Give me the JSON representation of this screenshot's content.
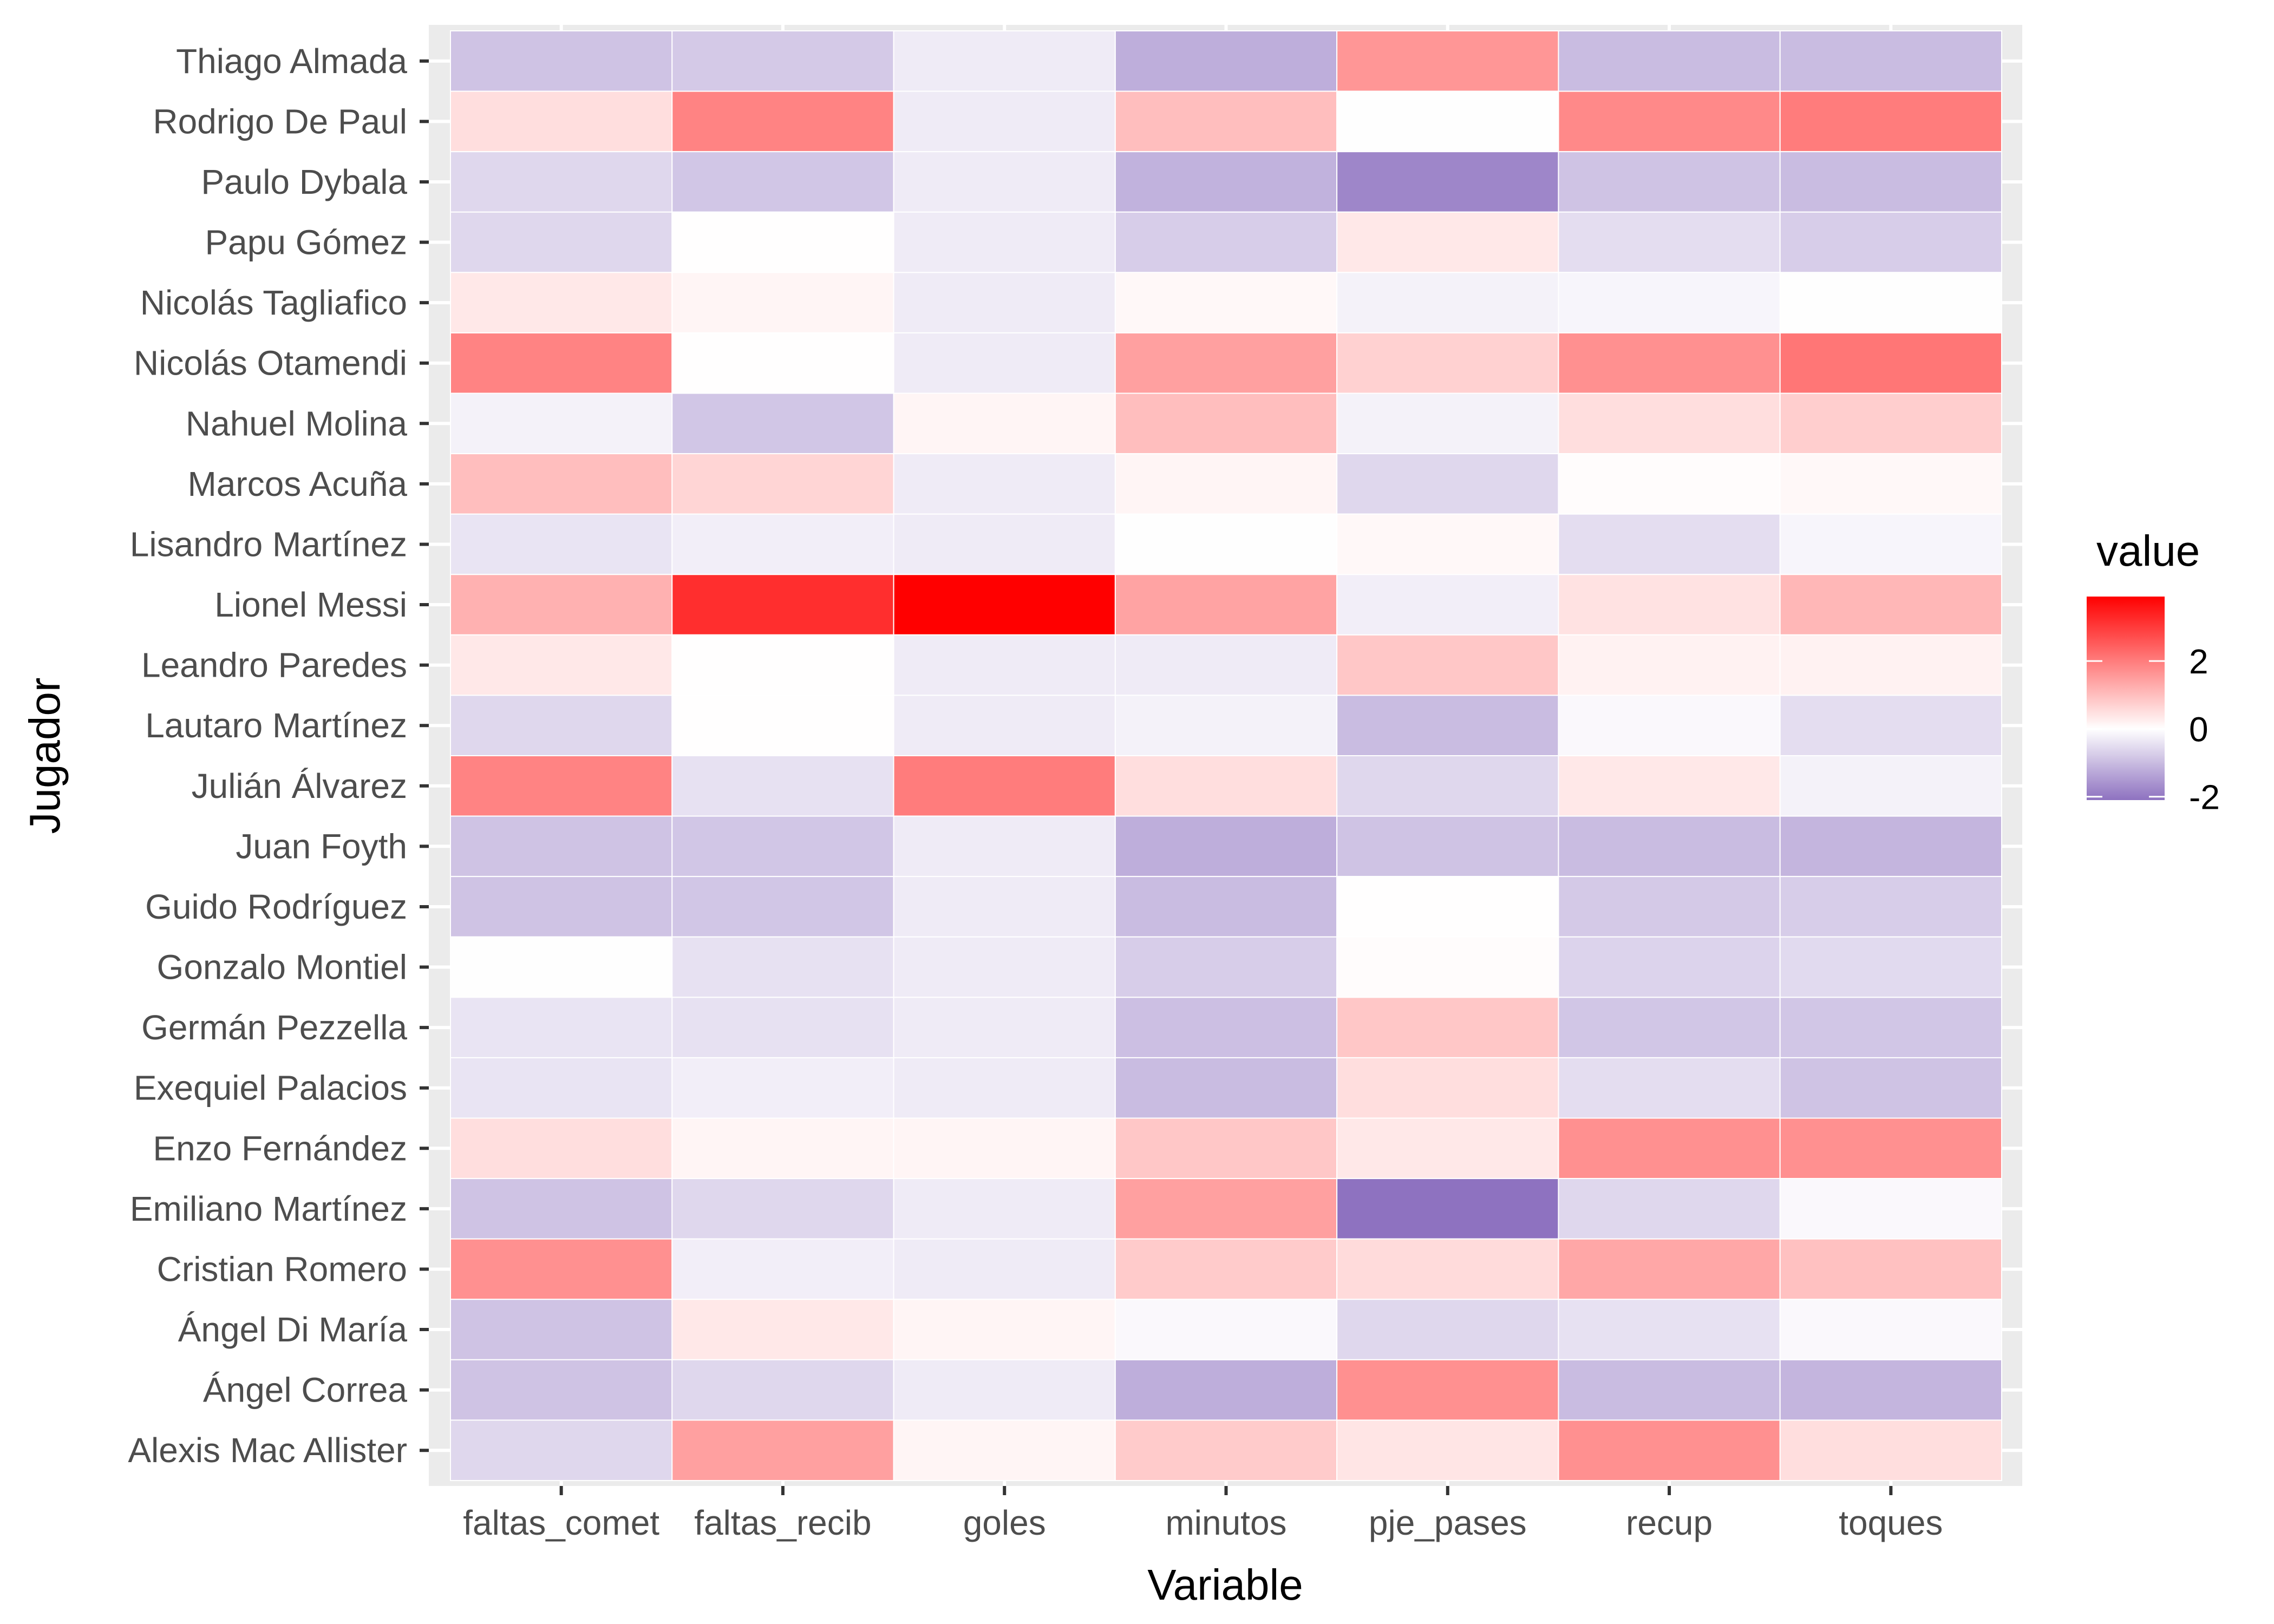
{
  "chart_data": {
    "type": "heatmap",
    "title": "",
    "xlabel": "Variable",
    "ylabel": "Jugador",
    "x_categories": [
      "faltas_comet",
      "faltas_recib",
      "goles",
      "minutos",
      "pje_pases",
      "recup",
      "toques"
    ],
    "y_categories_top_to_bottom": [
      "Thiago Almada",
      "Rodrigo De Paul",
      "Paulo Dybala",
      "Papu Gómez",
      "Nicolás Tagliafico",
      "Nicolás Otamendi",
      "Nahuel Molina",
      "Marcos Acuña",
      "Lisandro Martínez",
      "Lionel Messi",
      "Leandro Paredes",
      "Lautaro Martínez",
      "Julián Álvarez",
      "Juan Foyth",
      "Guido Rodríguez",
      "Gonzalo Montiel",
      "Germán Pezzella",
      "Exequiel Palacios",
      "Enzo Fernández",
      "Emiliano Martínez",
      "Cristian Romero",
      "Ángel Di María",
      "Ángel Correa",
      "Alexis Mac Allister"
    ],
    "values": [
      [
        -0.9,
        -0.8,
        -0.3,
        -1.2,
        1.6,
        -1.0,
        -1.0
      ],
      [
        0.5,
        1.9,
        -0.3,
        1.0,
        -0.02,
        1.8,
        2.0
      ],
      [
        -0.6,
        -0.85,
        -0.3,
        -1.15,
        -1.8,
        -0.9,
        -1.0
      ],
      [
        -0.6,
        0.02,
        -0.3,
        -0.75,
        0.35,
        -0.5,
        -0.75
      ],
      [
        0.35,
        0.15,
        -0.3,
        0.1,
        -0.2,
        -0.15,
        -0.02
      ],
      [
        1.9,
        0.02,
        -0.3,
        1.45,
        0.7,
        1.7,
        2.1
      ],
      [
        -0.2,
        -0.85,
        0.15,
        1.0,
        -0.2,
        0.5,
        0.75
      ],
      [
        1.0,
        0.65,
        -0.3,
        0.15,
        -0.6,
        0.05,
        0.1
      ],
      [
        -0.4,
        -0.25,
        -0.3,
        -0.02,
        0.1,
        -0.5,
        -0.15
      ],
      [
        1.2,
        3.2,
        3.9,
        1.4,
        -0.25,
        0.45,
        1.1
      ],
      [
        0.35,
        0.02,
        -0.3,
        -0.3,
        0.85,
        0.2,
        0.2
      ],
      [
        -0.6,
        0.02,
        -0.3,
        -0.2,
        -1.0,
        -0.1,
        -0.5
      ],
      [
        1.9,
        -0.45,
        2.0,
        0.5,
        -0.6,
        0.35,
        -0.2
      ],
      [
        -0.9,
        -0.85,
        -0.3,
        -1.2,
        -0.9,
        -1.0,
        -1.1
      ],
      [
        -0.9,
        -0.85,
        -0.3,
        -1.0,
        0.02,
        -0.8,
        -0.75
      ],
      [
        -0.02,
        -0.45,
        -0.3,
        -0.75,
        0.05,
        -0.65,
        -0.55
      ],
      [
        -0.4,
        -0.45,
        -0.3,
        -0.95,
        0.85,
        -0.85,
        -0.85
      ],
      [
        -0.4,
        -0.25,
        -0.3,
        -1.0,
        0.5,
        -0.5,
        -0.9
      ],
      [
        0.5,
        0.15,
        0.15,
        0.85,
        0.35,
        1.7,
        1.7
      ],
      [
        -0.9,
        -0.6,
        -0.3,
        1.45,
        -2.1,
        -0.6,
        -0.1
      ],
      [
        1.7,
        -0.25,
        -0.3,
        0.8,
        0.55,
        1.35,
        0.95
      ],
      [
        -0.9,
        0.35,
        0.15,
        -0.1,
        -0.6,
        -0.45,
        -0.1
      ],
      [
        -0.9,
        -0.6,
        -0.3,
        -1.2,
        1.7,
        -1.0,
        -1.1
      ],
      [
        -0.6,
        1.45,
        0.15,
        0.8,
        0.4,
        1.7,
        0.5
      ]
    ],
    "legend": {
      "title": "value",
      "position": "right",
      "ticks": [
        2,
        0,
        -2
      ],
      "range": [
        -2.1,
        3.9
      ],
      "low_color": "#8E72C0",
      "mid_color": "#FFFFFF",
      "high_color": "#FF0000",
      "midpoint": 0
    },
    "grid": true,
    "panel_background": "#EBEBEB"
  }
}
